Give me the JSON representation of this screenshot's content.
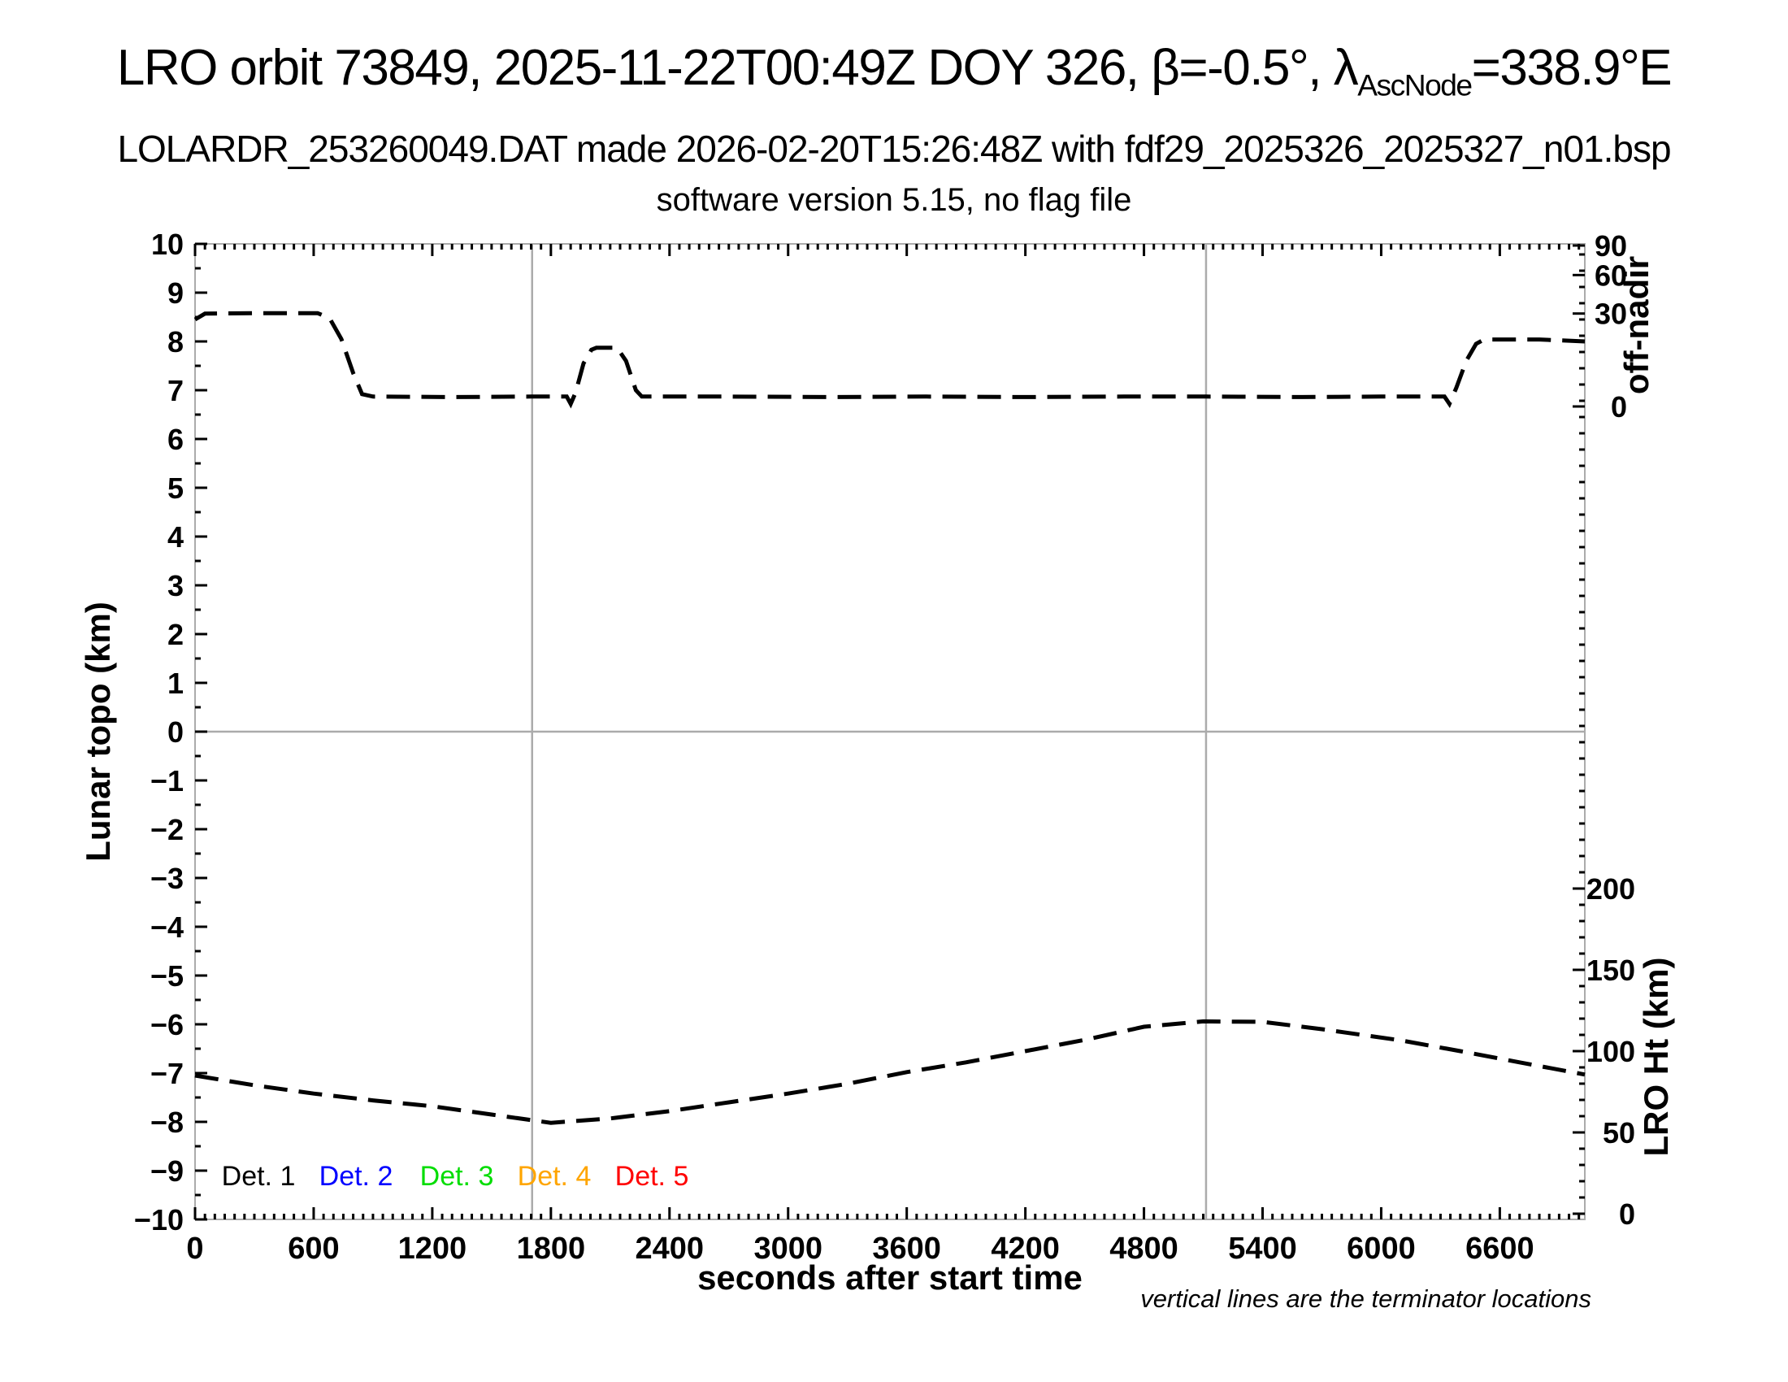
{
  "header": {
    "title": {
      "prefix": "LRO orbit 73849, 2025-11-22T00:49Z DOY 326, β=-0.5°, λ",
      "subscript": "AscNode",
      "suffix": "=338.9°E"
    },
    "subtitle1": "LOLARDR_253260049.DAT made 2026-02-20T15:26:48Z with fdf29_2025326_2025327_n01.bsp",
    "subtitle2": "software version 5.15, no flag file"
  },
  "chart_data": {
    "type": "line",
    "title": "LRO orbit 73849, 2025-11-22T00:49Z DOY 326, β=-0.5°, λAscNode=338.9°E",
    "x_axis": {
      "label": "seconds after start time",
      "range": [
        0,
        7030
      ],
      "major_ticks": [
        0,
        600,
        1200,
        1800,
        2400,
        3000,
        3600,
        4200,
        4800,
        5400,
        6000,
        6600
      ],
      "minor_tick_step_s": 50
    },
    "y_axis_left": {
      "label": "Lunar topo (km)",
      "range": [
        -10,
        10
      ],
      "major_tick_step": 1,
      "minor_tick_step": 0.5,
      "gridline_at": 0
    },
    "y_axis_right_top": {
      "label": "off-nadir",
      "units": "degrees",
      "scale": "sqrt",
      "ticks": [
        90,
        60,
        30,
        0
      ]
    },
    "y_axis_right_bottom": {
      "label": "LRO Ht (km)",
      "ticks": [
        200,
        150,
        100,
        50,
        0
      ],
      "minor_tick_step_km": 10
    },
    "terminator_lines_s": [
      1705,
      5114
    ],
    "footnote": "vertical lines are the terminator locations",
    "legend": [
      {
        "label": "Det. 1",
        "color": "#000000"
      },
      {
        "label": "Det. 2",
        "color": "#0000ff"
      },
      {
        "label": "Det. 3",
        "color": "#00dd00"
      },
      {
        "label": "Det. 4",
        "color": "#ffa500"
      },
      {
        "label": "Det. 5",
        "color": "#ff0000"
      }
    ],
    "series": [
      {
        "name": "spacecraft off-nadir angle",
        "style": "dashed-black",
        "units": "left-axis (Lunar topo km) plot units; sqrt-scale right axis in degrees",
        "approx_readings_deg": {
          "start_slew": 30,
          "nadir_segment": 0,
          "mid_bump_peak": 11,
          "end_slew": 15
        },
        "points": [
          [
            0,
            8.45
          ],
          [
            50,
            8.57
          ],
          [
            300,
            8.58
          ],
          [
            620,
            8.58
          ],
          [
            680,
            8.48
          ],
          [
            740,
            8.05
          ],
          [
            800,
            7.35
          ],
          [
            845,
            6.92
          ],
          [
            900,
            6.87
          ],
          [
            1300,
            6.86
          ],
          [
            1700,
            6.87
          ],
          [
            1880,
            6.87
          ],
          [
            1900,
            6.72
          ],
          [
            1925,
            6.95
          ],
          [
            1965,
            7.55
          ],
          [
            2005,
            7.83
          ],
          [
            2030,
            7.87
          ],
          [
            2135,
            7.87
          ],
          [
            2180,
            7.6
          ],
          [
            2230,
            7.0
          ],
          [
            2260,
            6.87
          ],
          [
            2700,
            6.87
          ],
          [
            3200,
            6.86
          ],
          [
            3700,
            6.87
          ],
          [
            4200,
            6.86
          ],
          [
            4700,
            6.87
          ],
          [
            5114,
            6.87
          ],
          [
            5600,
            6.86
          ],
          [
            6000,
            6.87
          ],
          [
            6320,
            6.87
          ],
          [
            6345,
            6.72
          ],
          [
            6380,
            7.05
          ],
          [
            6430,
            7.6
          ],
          [
            6480,
            7.95
          ],
          [
            6520,
            8.04
          ],
          [
            6800,
            8.04
          ],
          [
            7030,
            8.0
          ]
        ]
      },
      {
        "name": "LRO height above surface",
        "style": "dashed-black",
        "units": "left-axis (Lunar topo km) plot units; right axis LRO Ht km (0 km = -9.88, 50 km/1.67 units)",
        "approx_readings_km": {
          "start": 85,
          "minimum": 56,
          "maximum": 119,
          "end": 86
        },
        "points": [
          [
            0,
            -7.05
          ],
          [
            300,
            -7.25
          ],
          [
            600,
            -7.42
          ],
          [
            900,
            -7.56
          ],
          [
            1200,
            -7.68
          ],
          [
            1500,
            -7.85
          ],
          [
            1800,
            -8.02
          ],
          [
            2100,
            -7.93
          ],
          [
            2400,
            -7.78
          ],
          [
            2700,
            -7.6
          ],
          [
            3000,
            -7.42
          ],
          [
            3300,
            -7.22
          ],
          [
            3600,
            -6.98
          ],
          [
            3900,
            -6.78
          ],
          [
            4200,
            -6.55
          ],
          [
            4500,
            -6.32
          ],
          [
            4800,
            -6.05
          ],
          [
            5100,
            -5.94
          ],
          [
            5400,
            -5.95
          ],
          [
            5700,
            -6.1
          ],
          [
            6100,
            -6.33
          ],
          [
            6400,
            -6.55
          ],
          [
            6700,
            -6.78
          ],
          [
            7030,
            -7.03
          ]
        ]
      }
    ],
    "layout_hints": {
      "grid": "single horizontal gray line at y=0; two vertical gray terminator lines",
      "legend_position": "inside plot, lower left",
      "line_style": "black dashed"
    }
  },
  "colors": {
    "background": "#ffffff",
    "axis_frame": "#ababab",
    "gridline": "#ababab",
    "terminator_line": "#ababab",
    "curve": "#000000",
    "det2_blue": "#0000ff",
    "det3_green": "#00dd00",
    "det4_orange": "#ffa500",
    "det5_red": "#ff0000"
  }
}
